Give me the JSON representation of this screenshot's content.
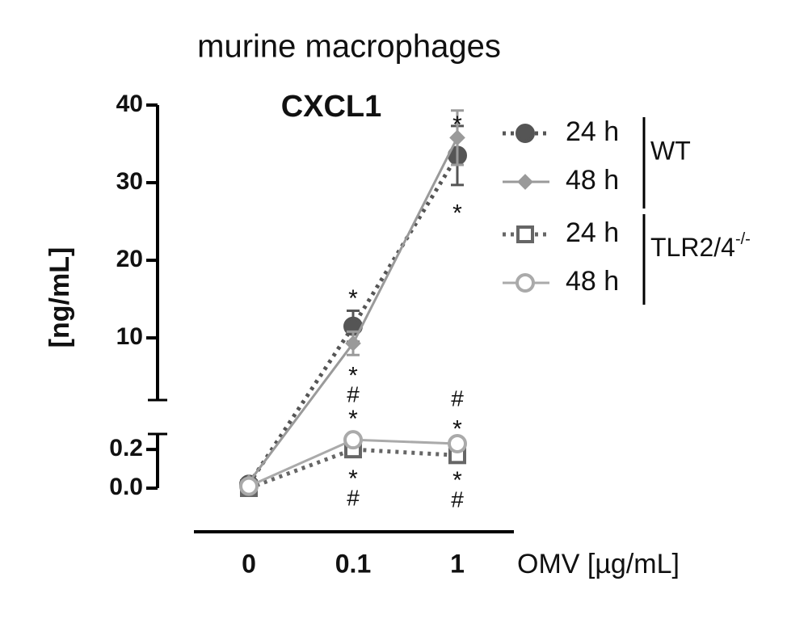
{
  "chart_data": {
    "type": "line",
    "title": "murine macrophages",
    "subtitle": "CXCL1",
    "ylabel": "[ng/mL]",
    "xlabel": "OMV [µg/mL]",
    "categories": [
      "0",
      "0.1",
      "1"
    ],
    "ylim": [
      0,
      40
    ],
    "ybreak": [
      0.28,
      2.2
    ],
    "yticks": [
      {
        "value": 0,
        "label": "0.0"
      },
      0.2,
      10,
      20,
      30,
      40
    ],
    "series": [
      {
        "name": "24 h",
        "group": 0,
        "color": "#555555",
        "dash": true,
        "marker": "filled-circle",
        "values": [
          0.02,
          11.5,
          33.5
        ],
        "errors": [
          0,
          2.0,
          3.8
        ]
      },
      {
        "name": "48 h",
        "group": 0,
        "color": "#9a9a9a",
        "dash": false,
        "marker": "diamond",
        "values": [
          0.03,
          9.3,
          35.8
        ],
        "errors": [
          0,
          1.5,
          3.5
        ]
      },
      {
        "name": "24 h",
        "group": 1,
        "color": "#666666",
        "dash": true,
        "marker": "open-square",
        "values": [
          0.0,
          0.2,
          0.17
        ],
        "errors": [
          0,
          0.02,
          0.02
        ]
      },
      {
        "name": "48 h",
        "group": 1,
        "color": "#aaaaaa",
        "dash": false,
        "marker": "open-circle",
        "values": [
          0.01,
          0.25,
          0.23
        ],
        "errors": [
          0,
          0.02,
          0.02
        ]
      }
    ],
    "legend_groups": [
      {
        "label": "WT"
      },
      {
        "label": "TLR2/4",
        "sup": "-/-"
      }
    ],
    "annotations": [
      {
        "text": "*",
        "x": 1,
        "y": 15.5
      },
      {
        "text": "*",
        "x": 1,
        "y": 5.6
      },
      {
        "text": "#",
        "x": 1,
        "y": 2.5
      },
      {
        "text": "*",
        "x": 1,
        "y": 1.29
      },
      {
        "text": "*",
        "x": 1,
        "y": 0.067
      },
      {
        "text": "#",
        "x": 1,
        "y": -0.058
      },
      {
        "text": "*",
        "x": 2,
        "y": 37.9
      },
      {
        "text": "*",
        "x": 2,
        "y": 26.5
      },
      {
        "text": "#",
        "x": 2,
        "y": 2.1
      },
      {
        "text": "*",
        "x": 2,
        "y": 0.74
      },
      {
        "text": "*",
        "x": 2,
        "y": 0.058
      },
      {
        "text": "#",
        "x": 2,
        "y": -0.067
      }
    ]
  }
}
